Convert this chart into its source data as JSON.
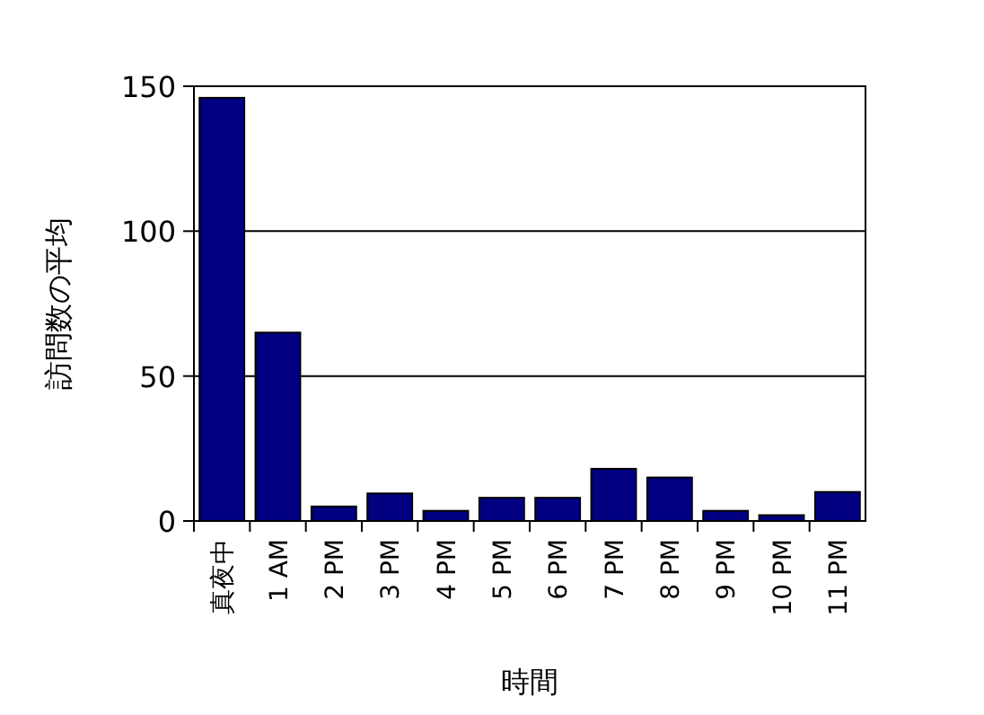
{
  "chart_data": {
    "type": "bar",
    "xlabel": "時間",
    "ylabel": "訪問数の平均",
    "categories": [
      "真夜中",
      "1 AM",
      "2 PM",
      "3 PM",
      "4 PM",
      "5 PM",
      "6 PM",
      "7 PM",
      "8 PM",
      "9 PM",
      "10 PM",
      "11 PM"
    ],
    "values": [
      146,
      65,
      5,
      9.5,
      3.5,
      8,
      8,
      18,
      15,
      3.5,
      2,
      10
    ],
    "color": "#000080",
    "ylim": [
      0,
      150
    ],
    "yticks": [
      0,
      50,
      100,
      150
    ],
    "grid": "y"
  }
}
